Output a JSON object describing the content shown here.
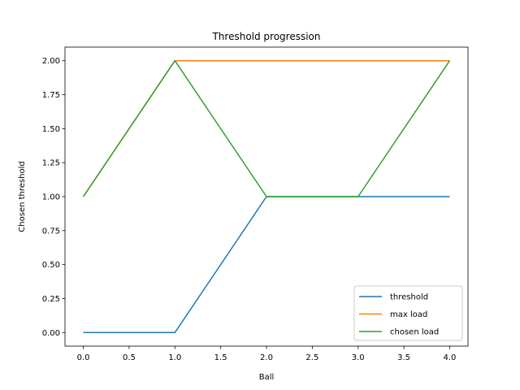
{
  "chart_data": {
    "type": "line",
    "title": "Threshold progression",
    "xlabel": "Ball",
    "ylabel": "Chosen threshold",
    "x": [
      0,
      1,
      2,
      3,
      4
    ],
    "xlim": [
      -0.2,
      4.2
    ],
    "ylim": [
      -0.1,
      2.1
    ],
    "xticks": [
      0.0,
      0.5,
      1.0,
      1.5,
      2.0,
      2.5,
      3.0,
      3.5,
      4.0
    ],
    "xtick_labels": [
      "0.0",
      "0.5",
      "1.0",
      "1.5",
      "2.0",
      "2.5",
      "3.0",
      "3.5",
      "4.0"
    ],
    "yticks": [
      0.0,
      0.25,
      0.5,
      0.75,
      1.0,
      1.25,
      1.5,
      1.75,
      2.0
    ],
    "ytick_labels": [
      "0.00",
      "0.25",
      "0.50",
      "0.75",
      "1.00",
      "1.25",
      "1.50",
      "1.75",
      "2.00"
    ],
    "grid": false,
    "legend_position": "lower-right",
    "series": [
      {
        "name": "threshold",
        "color": "#1f77b4",
        "values": [
          0,
          0,
          1,
          1,
          1
        ]
      },
      {
        "name": "max load",
        "color": "#ff7f0e",
        "values": [
          1,
          2,
          2,
          2,
          2
        ]
      },
      {
        "name": "chosen load",
        "color": "#2ca02c",
        "values": [
          1,
          2,
          1,
          1,
          2
        ]
      }
    ]
  }
}
